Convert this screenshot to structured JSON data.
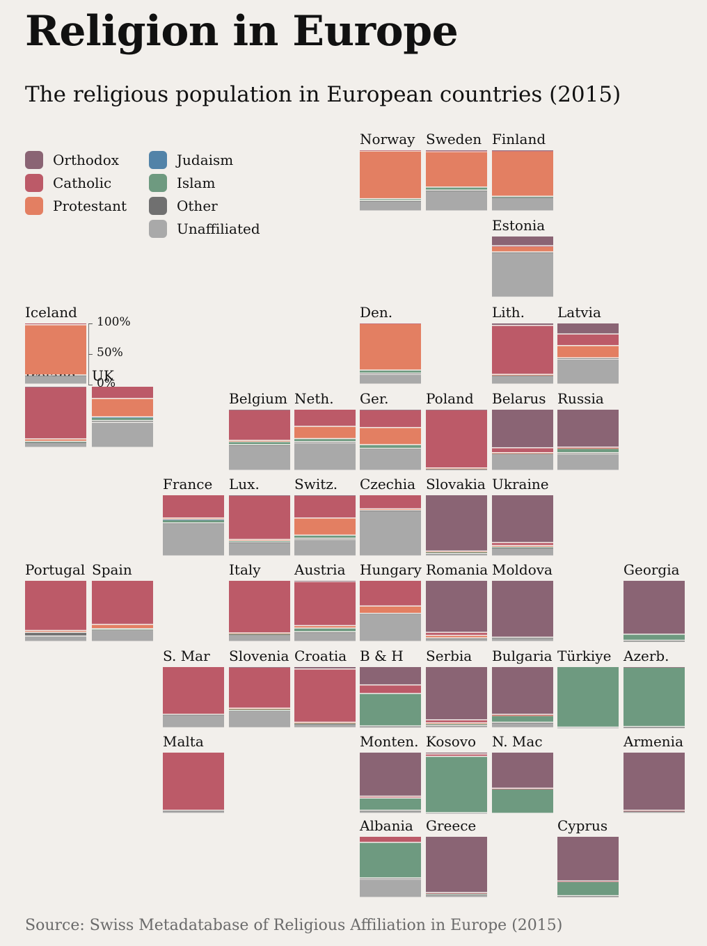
{
  "title": "Religion in Europe",
  "subtitle": "The religious population in European countries (2015)",
  "source": "Source: Swiss Metadatabase of Religious Affiliation in Europe (2015)",
  "chart_data": {
    "type": "stacked-bar-tile-map",
    "value_unit": "percent of population",
    "categories": [
      "Orthodox",
      "Catholic",
      "Protestant",
      "Judaism",
      "Islam",
      "Other",
      "Unaffiliated"
    ],
    "colors": {
      "Orthodox": "#8a6474",
      "Catholic": "#bc5a68",
      "Protestant": "#e37f62",
      "Judaism": "#5283a8",
      "Islam": "#6e9a80",
      "Other": "#707070",
      "Unaffiliated": "#a9a9a9"
    },
    "axis_ticks": [
      "100%",
      "50%",
      "0%"
    ],
    "countries": [
      {
        "name": "Norway",
        "col": 5,
        "row": 0,
        "values": {
          "Orthodox": 0,
          "Catholic": 2,
          "Protestant": 78,
          "Judaism": 0,
          "Islam": 3,
          "Other": 1,
          "Unaffiliated": 16
        }
      },
      {
        "name": "Sweden",
        "col": 6,
        "row": 0,
        "values": {
          "Orthodox": 1,
          "Catholic": 2,
          "Protestant": 58,
          "Judaism": 0,
          "Islam": 5,
          "Other": 1,
          "Unaffiliated": 33
        }
      },
      {
        "name": "Finland",
        "col": 7,
        "row": 0,
        "values": {
          "Orthodox": 1,
          "Catholic": 1,
          "Protestant": 74,
          "Judaism": 0,
          "Islam": 1,
          "Other": 1,
          "Unaffiliated": 22
        }
      },
      {
        "name": "Estonia",
        "col": 7,
        "row": 1,
        "values": {
          "Orthodox": 16,
          "Catholic": 1,
          "Protestant": 9,
          "Judaism": 0,
          "Islam": 0,
          "Other": 1,
          "Unaffiliated": 73
        }
      },
      {
        "name": "Iceland",
        "col": 0,
        "row": 2,
        "values": {
          "Orthodox": 0,
          "Catholic": 3,
          "Protestant": 82,
          "Judaism": 0,
          "Islam": 0,
          "Other": 1,
          "Unaffiliated": 14
        }
      },
      {
        "name": "Den.",
        "col": 5,
        "row": 2,
        "values": {
          "Orthodox": 0,
          "Catholic": 1,
          "Protestant": 76,
          "Judaism": 0,
          "Islam": 5,
          "Other": 2,
          "Unaffiliated": 16
        }
      },
      {
        "name": "Lith.",
        "col": 7,
        "row": 2,
        "values": {
          "Orthodox": 4,
          "Catholic": 80,
          "Protestant": 1,
          "Judaism": 0,
          "Islam": 0,
          "Other": 1,
          "Unaffiliated": 14
        }
      },
      {
        "name": "Latvia",
        "col": 8,
        "row": 2,
        "values": {
          "Orthodox": 18,
          "Catholic": 19,
          "Protestant": 20,
          "Judaism": 0,
          "Islam": 0,
          "Other": 2,
          "Unaffiliated": 41
        }
      },
      {
        "name": "Ireland",
        "col": 0,
        "row": 3,
        "values": {
          "Orthodox": 1,
          "Catholic": 85,
          "Protestant": 4,
          "Judaism": 0,
          "Islam": 1,
          "Other": 1,
          "Unaffiliated": 8
        }
      },
      {
        "name": "UK",
        "col": 1,
        "row": 3,
        "values": {
          "Orthodox": 0,
          "Catholic": 20,
          "Protestant": 30,
          "Judaism": 1,
          "Islam": 5,
          "Other": 3,
          "Unaffiliated": 41
        }
      },
      {
        "name": "Belgium",
        "col": 3,
        "row": 4,
        "values": {
          "Orthodox": 1,
          "Catholic": 50,
          "Protestant": 2,
          "Judaism": 0,
          "Islam": 5,
          "Other": 1,
          "Unaffiliated": 41
        }
      },
      {
        "name": "Neth.",
        "col": 4,
        "row": 4,
        "values": {
          "Orthodox": 0,
          "Catholic": 28,
          "Protestant": 20,
          "Judaism": 0,
          "Islam": 5,
          "Other": 2,
          "Unaffiliated": 45
        }
      },
      {
        "name": "Ger.",
        "col": 5,
        "row": 4,
        "values": {
          "Orthodox": 1,
          "Catholic": 29,
          "Protestant": 28,
          "Judaism": 0,
          "Islam": 6,
          "Other": 1,
          "Unaffiliated": 35
        }
      },
      {
        "name": "Poland",
        "col": 6,
        "row": 4,
        "values": {
          "Orthodox": 1,
          "Catholic": 95,
          "Protestant": 1,
          "Judaism": 0,
          "Islam": 0,
          "Other": 1,
          "Unaffiliated": 2
        }
      },
      {
        "name": "Belarus",
        "col": 7,
        "row": 4,
        "values": {
          "Orthodox": 63,
          "Catholic": 8,
          "Protestant": 1,
          "Judaism": 0,
          "Islam": 0,
          "Other": 1,
          "Unaffiliated": 27
        }
      },
      {
        "name": "Russia",
        "col": 8,
        "row": 4,
        "values": {
          "Orthodox": 62,
          "Catholic": 1,
          "Protestant": 1,
          "Judaism": 0,
          "Islam": 7,
          "Other": 2,
          "Unaffiliated": 27
        }
      },
      {
        "name": "France",
        "col": 2,
        "row": 5,
        "values": {
          "Orthodox": 0,
          "Catholic": 38,
          "Protestant": 2,
          "Judaism": 1,
          "Islam": 5,
          "Other": 1,
          "Unaffiliated": 53
        }
      },
      {
        "name": "Lux.",
        "col": 3,
        "row": 5,
        "values": {
          "Orthodox": 1,
          "Catholic": 72,
          "Protestant": 2,
          "Judaism": 0,
          "Islam": 2,
          "Other": 1,
          "Unaffiliated": 22
        }
      },
      {
        "name": "Switz.",
        "col": 4,
        "row": 5,
        "values": {
          "Orthodox": 1,
          "Catholic": 37,
          "Protestant": 28,
          "Judaism": 0,
          "Islam": 5,
          "Other": 2,
          "Unaffiliated": 27
        }
      },
      {
        "name": "Czechia",
        "col": 5,
        "row": 5,
        "values": {
          "Orthodox": 0,
          "Catholic": 23,
          "Protestant": 2,
          "Judaism": 0,
          "Islam": 0,
          "Other": 1,
          "Unaffiliated": 74
        }
      },
      {
        "name": "Slovakia",
        "col": 6,
        "row": 5,
        "values": {
          "Orthodox": 92,
          "Catholic": 0,
          "Protestant": 1,
          "Judaism": 0,
          "Islam": 3,
          "Other": 1,
          "Unaffiliated": 3
        }
      },
      {
        "name": "Ukraine",
        "col": 7,
        "row": 5,
        "values": {
          "Orthodox": 78,
          "Catholic": 5,
          "Protestant": 2,
          "Judaism": 0,
          "Islam": 1,
          "Other": 1,
          "Unaffiliated": 13
        }
      },
      {
        "name": "Portugal",
        "col": 0,
        "row": 6,
        "values": {
          "Orthodox": 0,
          "Catholic": 82,
          "Protestant": 3,
          "Judaism": 0,
          "Islam": 0,
          "Other": 6,
          "Unaffiliated": 9
        }
      },
      {
        "name": "Spain",
        "col": 1,
        "row": 6,
        "values": {
          "Orthodox": 0,
          "Catholic": 72,
          "Protestant": 7,
          "Judaism": 0,
          "Islam": 2,
          "Other": 1,
          "Unaffiliated": 18
        }
      },
      {
        "name": "Italy",
        "col": 3,
        "row": 6,
        "values": {
          "Orthodox": 0,
          "Catholic": 86,
          "Protestant": 1,
          "Judaism": 0,
          "Islam": 1,
          "Other": 1,
          "Unaffiliated": 11
        }
      },
      {
        "name": "Austria",
        "col": 4,
        "row": 6,
        "values": {
          "Orthodox": 2,
          "Catholic": 72,
          "Protestant": 4,
          "Judaism": 0,
          "Islam": 6,
          "Other": 1,
          "Unaffiliated": 15
        }
      },
      {
        "name": "Hungary",
        "col": 5,
        "row": 6,
        "values": {
          "Orthodox": 0,
          "Catholic": 42,
          "Protestant": 12,
          "Judaism": 0,
          "Islam": 0,
          "Other": 1,
          "Unaffiliated": 45
        }
      },
      {
        "name": "Romania",
        "col": 6,
        "row": 6,
        "values": {
          "Orthodox": 85,
          "Catholic": 5,
          "Protestant": 4,
          "Judaism": 0,
          "Islam": 0,
          "Other": 1,
          "Unaffiliated": 5
        }
      },
      {
        "name": "Moldova",
        "col": 7,
        "row": 6,
        "values": {
          "Orthodox": 93,
          "Catholic": 0,
          "Protestant": 0,
          "Judaism": 0,
          "Islam": 0,
          "Other": 1,
          "Unaffiliated": 6
        }
      },
      {
        "name": "Georgia",
        "col": 9,
        "row": 6,
        "values": {
          "Orthodox": 88,
          "Catholic": 0,
          "Protestant": 0,
          "Judaism": 0,
          "Islam": 10,
          "Other": 1,
          "Unaffiliated": 1
        }
      },
      {
        "name": "S. Mar",
        "col": 2,
        "row": 7,
        "values": {
          "Orthodox": 0,
          "Catholic": 78,
          "Protestant": 0,
          "Judaism": 0,
          "Islam": 0,
          "Other": 1,
          "Unaffiliated": 21
        }
      },
      {
        "name": "Slovenia",
        "col": 3,
        "row": 7,
        "values": {
          "Orthodox": 1,
          "Catholic": 67,
          "Protestant": 1,
          "Judaism": 0,
          "Islam": 3,
          "Other": 1,
          "Unaffiliated": 27
        }
      },
      {
        "name": "Croatia",
        "col": 4,
        "row": 7,
        "values": {
          "Orthodox": 4,
          "Catholic": 87,
          "Protestant": 1,
          "Judaism": 0,
          "Islam": 1,
          "Other": 1,
          "Unaffiliated": 6
        }
      },
      {
        "name": "B & H",
        "col": 5,
        "row": 7,
        "values": {
          "Orthodox": 30,
          "Catholic": 14,
          "Protestant": 0,
          "Judaism": 0,
          "Islam": 53,
          "Other": 1,
          "Unaffiliated": 2
        }
      },
      {
        "name": "Serbia",
        "col": 6,
        "row": 7,
        "values": {
          "Orthodox": 87,
          "Catholic": 5,
          "Protestant": 1,
          "Judaism": 0,
          "Islam": 3,
          "Other": 1,
          "Unaffiliated": 3
        }
      },
      {
        "name": "Bulgaria",
        "col": 7,
        "row": 7,
        "values": {
          "Orthodox": 78,
          "Catholic": 1,
          "Protestant": 1,
          "Judaism": 0,
          "Islam": 11,
          "Other": 1,
          "Unaffiliated": 8
        }
      },
      {
        "name": "Türkiye",
        "col": 8,
        "row": 7,
        "values": {
          "Orthodox": 0,
          "Catholic": 0,
          "Protestant": 0,
          "Judaism": 0,
          "Islam": 99,
          "Other": 0,
          "Unaffiliated": 1
        }
      },
      {
        "name": "Azerb.",
        "col": 9,
        "row": 7,
        "values": {
          "Orthodox": 1,
          "Catholic": 0,
          "Protestant": 0,
          "Judaism": 0,
          "Islam": 97,
          "Other": 1,
          "Unaffiliated": 1
        }
      },
      {
        "name": "Monten.",
        "col": 5,
        "row": 8,
        "values": {
          "Orthodox": 72,
          "Catholic": 3,
          "Protestant": 0,
          "Judaism": 0,
          "Islam": 20,
          "Other": 1,
          "Unaffiliated": 4
        }
      },
      {
        "name": "Kosovo",
        "col": 6,
        "row": 8,
        "values": {
          "Orthodox": 3,
          "Catholic": 4,
          "Protestant": 0,
          "Judaism": 0,
          "Islam": 92,
          "Other": 0,
          "Unaffiliated": 1
        }
      },
      {
        "name": "N. Mac",
        "col": 7,
        "row": 8,
        "values": {
          "Orthodox": 59,
          "Catholic": 1,
          "Protestant": 0,
          "Judaism": 0,
          "Islam": 40,
          "Other": 0,
          "Unaffiliated": 0
        }
      },
      {
        "name": "Armenia",
        "col": 9,
        "row": 8,
        "values": {
          "Orthodox": 95,
          "Catholic": 1,
          "Protestant": 0,
          "Judaism": 0,
          "Islam": 0,
          "Other": 1,
          "Unaffiliated": 3
        }
      },
      {
        "name": "Malta",
        "col": 2,
        "row": 8,
        "values": {
          "Orthodox": 0,
          "Catholic": 95,
          "Protestant": 0,
          "Judaism": 0,
          "Islam": 0,
          "Other": 1,
          "Unaffiliated": 4
        }
      },
      {
        "name": "Albania",
        "col": 5,
        "row": 9,
        "values": {
          "Orthodox": 0,
          "Catholic": 10,
          "Protestant": 0,
          "Judaism": 0,
          "Islam": 58,
          "Other": 2,
          "Unaffiliated": 30
        }
      },
      {
        "name": "Greece",
        "col": 6,
        "row": 9,
        "values": {
          "Orthodox": 92,
          "Catholic": 1,
          "Protestant": 0,
          "Judaism": 0,
          "Islam": 2,
          "Other": 1,
          "Unaffiliated": 4
        }
      },
      {
        "name": "Cyprus",
        "col": 8,
        "row": 9,
        "values": {
          "Orthodox": 73,
          "Catholic": 1,
          "Protestant": 0,
          "Judaism": 0,
          "Islam": 23,
          "Other": 1,
          "Unaffiliated": 2
        }
      }
    ]
  }
}
